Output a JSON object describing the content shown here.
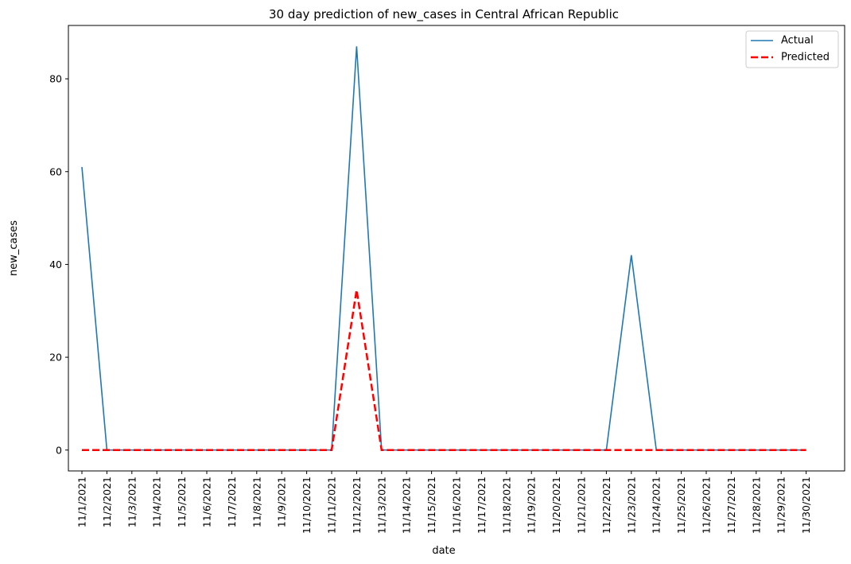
{
  "chart_data": {
    "type": "line",
    "title": "30 day prediction of new_cases in Central African Republic",
    "xlabel": "date",
    "ylabel": "new_cases",
    "categories": [
      "11/1/2021",
      "11/2/2021",
      "11/3/2021",
      "11/4/2021",
      "11/5/2021",
      "11/6/2021",
      "11/7/2021",
      "11/8/2021",
      "11/9/2021",
      "11/10/2021",
      "11/11/2021",
      "11/12/2021",
      "11/13/2021",
      "11/14/2021",
      "11/15/2021",
      "11/16/2021",
      "11/17/2021",
      "11/18/2021",
      "11/19/2021",
      "11/20/2021",
      "11/21/2021",
      "11/22/2021",
      "11/23/2021",
      "11/24/2021",
      "11/25/2021",
      "11/26/2021",
      "11/27/2021",
      "11/28/2021",
      "11/29/2021",
      "11/30/2021"
    ],
    "ylim": [
      -4.5,
      91.5
    ],
    "yticks": [
      0,
      20,
      40,
      60,
      80
    ],
    "grid": false,
    "legend_position": "top-right",
    "series": [
      {
        "name": "Actual",
        "style": "solid",
        "color": "#1f77b4",
        "values": [
          61,
          0,
          0,
          0,
          0,
          0,
          0,
          0,
          0,
          0,
          0,
          87,
          0,
          0,
          0,
          0,
          0,
          0,
          0,
          0,
          0,
          0,
          42,
          0,
          0,
          0,
          0,
          0,
          0,
          0
        ]
      },
      {
        "name": "Predicted",
        "style": "dashed",
        "color": "#ff0000",
        "values": [
          0,
          0,
          0,
          0,
          0,
          0,
          0,
          0,
          0,
          0,
          0,
          34.5,
          0,
          0,
          0,
          0,
          0,
          0,
          0,
          0,
          0,
          0,
          0,
          0,
          0,
          0,
          0,
          0,
          0,
          0
        ]
      }
    ]
  }
}
